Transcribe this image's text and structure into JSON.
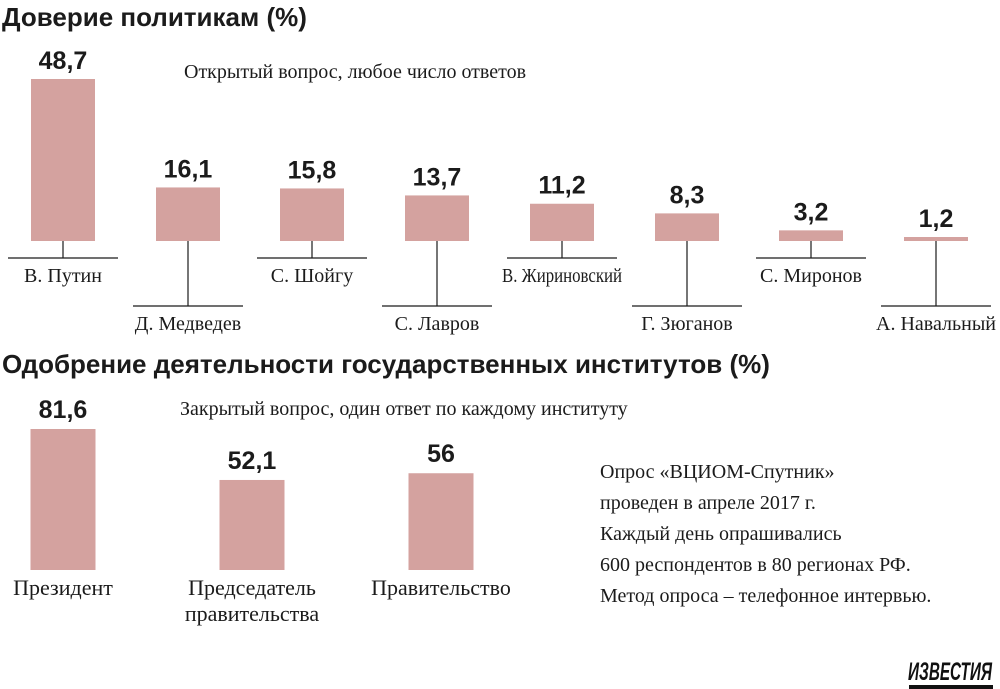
{
  "chart_data": [
    {
      "type": "bar",
      "title": "Доверие политикам (%)",
      "subtitle": "Открытый вопрос, любое число ответов",
      "categories": [
        "В. Путин",
        "Д. Медведев",
        "С. Шойгу",
        "С. Лавров",
        "В. Жириновский",
        "Г. Зюганов",
        "С. Миронов",
        "А. Навальный"
      ],
      "values": [
        48.7,
        16.1,
        15.8,
        13.7,
        11.2,
        8.3,
        3.2,
        1.2
      ],
      "value_labels": [
        "48,7",
        "16,1",
        "15,8",
        "13,7",
        "11,2",
        "8,3",
        "3,2",
        "1,2"
      ],
      "label_positions": [
        "high",
        "low",
        "high",
        "low",
        "high",
        "low",
        "high",
        "low"
      ],
      "color": "#d4a29f",
      "ylim": [
        0,
        48.7
      ],
      "grid": false,
      "legend": "none"
    },
    {
      "type": "bar",
      "title": "Одобрение деятельности государственных институтов (%)",
      "subtitle": "Закрытый вопрос, один ответ по каждому институту",
      "categories": [
        [
          "Президент"
        ],
        [
          "Председатель",
          "правительства"
        ],
        [
          "Правительство"
        ]
      ],
      "values": [
        81.6,
        52.1,
        56
      ],
      "value_labels": [
        "81,6",
        "52,1",
        "56"
      ],
      "color": "#d4a29f",
      "ylim": [
        0,
        81.6
      ],
      "grid": false,
      "legend": "none"
    }
  ],
  "note": {
    "lines": [
      "Опрос «ВЦИОМ-Спутник»",
      "проведен в апреле 2017 г.",
      "Каждый день опрашивались",
      "600 респондентов в 80 регионах РФ.",
      "Метод опроса – телефонное интервью."
    ]
  },
  "logo": {
    "text": "ИЗВЕСТИЯ"
  }
}
